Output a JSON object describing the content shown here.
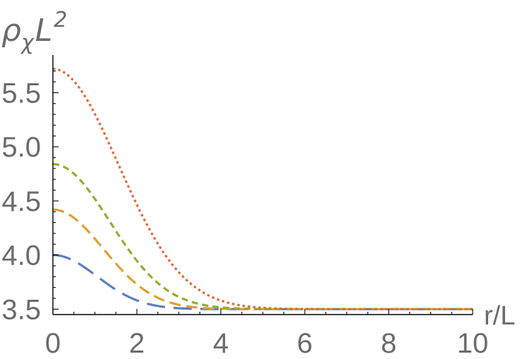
{
  "chart_data": {
    "type": "line",
    "title": "",
    "xlabel": "r/L",
    "ylabel": {
      "base": "ρ",
      "sub": "χ",
      "mid": "L",
      "sup": "2"
    },
    "xlim": [
      0,
      10
    ],
    "ylim": [
      3.45,
      5.77
    ],
    "x_ticks": [
      "0",
      "2",
      "4",
      "6",
      "8",
      "10"
    ],
    "y_ticks": [
      "3.5",
      "4.0",
      "4.5",
      "5.0",
      "5.5"
    ],
    "x_tick_values": [
      0,
      2,
      4,
      6,
      8,
      10
    ],
    "y_tick_values": [
      3.5,
      4.0,
      4.5,
      5.0,
      5.5
    ],
    "grid": false,
    "legend": "none",
    "baseline": 3.5,
    "series": [
      {
        "color": "#5b7fbf",
        "dash": "long-dash",
        "peak": 4.0,
        "width": 1.05
      },
      {
        "color": "#e0a030",
        "dash": "medium-dash",
        "peak": 4.42,
        "width": 1.2
      },
      {
        "color": "#8db030",
        "dash": "short-dash",
        "peak": 4.84,
        "width": 1.35
      },
      {
        "color": "#e06a3a",
        "dash": "dotted",
        "peak": 5.72,
        "width": 1.55
      }
    ]
  }
}
